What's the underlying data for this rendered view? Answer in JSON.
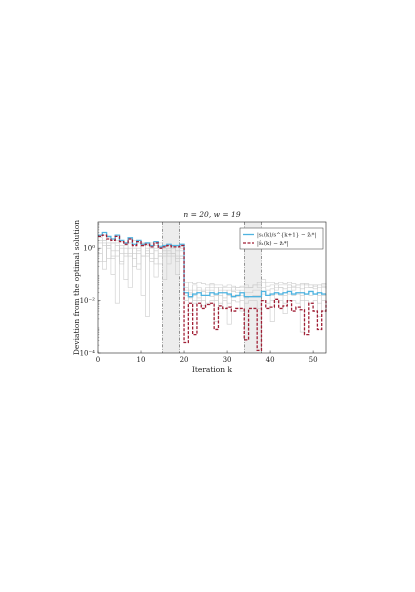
{
  "chart_data": {
    "type": "line",
    "title": "n = 20, w = 19",
    "xlabel": "Iteration k",
    "ylabel": "Deviation from the optimal solution",
    "xlim": [
      0,
      53
    ],
    "ylim_log10": [
      -4,
      1
    ],
    "y_scale": "log",
    "xticks": [
      0,
      10,
      20,
      30,
      40,
      50
    ],
    "xtick_labels": [
      "0",
      "10",
      "20",
      "30",
      "40",
      "50"
    ],
    "yticks_log10": [
      0,
      -2,
      -4
    ],
    "ytick_labels": [
      "10⁰",
      "10⁻²",
      "10⁻⁴"
    ],
    "grid": false,
    "legend_position": "top-right",
    "shaded_intervals": [
      [
        15,
        19
      ],
      [
        34,
        38
      ]
    ],
    "colors": {
      "series1": "#4fb3e0",
      "series2": "#a01f35",
      "background_lines": "#cccccc",
      "shaded": "#e6e6e6"
    },
    "series": [
      {
        "name": "|s₁(k)/s^{k+1} − z̄ₜ*|",
        "style": "solid",
        "x": [
          0,
          1,
          2,
          3,
          4,
          5,
          6,
          7,
          8,
          9,
          10,
          11,
          12,
          13,
          14,
          15,
          16,
          17,
          18,
          19,
          20,
          21,
          22,
          23,
          24,
          25,
          26,
          27,
          28,
          29,
          30,
          31,
          32,
          33,
          34,
          35,
          36,
          37,
          38,
          39,
          40,
          41,
          42,
          43,
          44,
          45,
          46,
          47,
          48,
          49,
          50,
          51,
          52,
          53
        ],
        "y_log10": [
          0.5,
          0.6,
          0.45,
          0.35,
          0.5,
          0.3,
          0.2,
          0.4,
          0.15,
          0.3,
          0.15,
          0.2,
          0.1,
          0.25,
          0.05,
          0.1,
          0.15,
          0.1,
          0.1,
          0.15,
          -1.7,
          -1.85,
          -1.75,
          -1.7,
          -1.8,
          -1.8,
          -1.7,
          -1.75,
          -1.7,
          -1.7,
          -1.75,
          -1.85,
          -1.8,
          -1.7,
          -1.85,
          -1.85,
          -1.85,
          -1.85,
          -1.65,
          -1.8,
          -1.75,
          -1.7,
          -1.75,
          -1.7,
          -1.65,
          -1.75,
          -1.7,
          -1.7,
          -1.75,
          -1.65,
          -1.75,
          -1.7,
          -1.75,
          -1.75
        ]
      },
      {
        "name": "|ŝ₁(k) − z̄ₜ*|",
        "style": "dashed",
        "x": [
          0,
          1,
          2,
          3,
          4,
          5,
          6,
          7,
          8,
          9,
          10,
          11,
          12,
          13,
          14,
          15,
          16,
          17,
          18,
          19,
          20,
          21,
          22,
          23,
          24,
          25,
          26,
          27,
          28,
          29,
          30,
          31,
          32,
          33,
          34,
          35,
          36,
          37,
          38,
          39,
          40,
          41,
          42,
          43,
          44,
          45,
          46,
          47,
          48,
          49,
          50,
          51,
          52,
          53
        ],
        "y_log10": [
          0.45,
          0.5,
          0.35,
          0.3,
          0.45,
          0.25,
          0.15,
          0.35,
          0.1,
          0.25,
          0.1,
          0.15,
          0.05,
          0.2,
          0.0,
          0.05,
          0.1,
          0.05,
          0.05,
          0.1,
          -3.6,
          -2.1,
          -3.3,
          -2.1,
          -2.3,
          -2.15,
          -2.1,
          -3.1,
          -2.2,
          -2.3,
          -2.25,
          -2.4,
          -2.3,
          -2.3,
          -3.5,
          -2.3,
          -2.3,
          -3.9,
          -2.0,
          -2.3,
          -2.25,
          -1.95,
          -2.3,
          -2.2,
          -2.0,
          -2.4,
          -2.25,
          -2.35,
          -3.3,
          -2.1,
          -2.4,
          -3.1,
          -2.4,
          -2.0
        ]
      }
    ],
    "background_traces_y_log10": [
      [
        0.2,
        0.3,
        0.1,
        -0.1,
        0.2,
        -0.2,
        0.1,
        -0.3,
        0.0,
        -0.1,
        0.2,
        -0.2,
        0.0,
        -0.4,
        0.1,
        -0.3,
        0.0,
        0.05,
        -0.1,
        0.0,
        -1.6,
        -1.7,
        -1.6,
        -1.7,
        -1.65,
        -1.7,
        -1.6,
        -1.75,
        -1.6,
        -1.7,
        -1.6,
        -1.65,
        -1.7,
        -1.6,
        -1.7,
        -1.7,
        -1.6,
        -1.6,
        -1.5,
        -1.6,
        -1.55,
        -1.6,
        -1.5,
        -1.55,
        -1.5,
        -1.6,
        -1.5,
        -1.55,
        -1.5,
        -1.5,
        -1.55,
        -1.5,
        -1.5,
        -1.55
      ],
      [
        0.0,
        -0.5,
        0.2,
        -1.0,
        0.1,
        -0.6,
        -0.2,
        -1.5,
        0.0,
        -0.8,
        -0.3,
        -2.6,
        0.05,
        -0.6,
        -0.3,
        -1.2,
        -0.1,
        -0.2,
        -0.4,
        -0.3,
        -1.3,
        -2.5,
        -1.4,
        -1.6,
        -2.2,
        -1.5,
        -1.4,
        -2.8,
        -1.5,
        -1.6,
        -2.9,
        -1.5,
        -1.6,
        -2.4,
        -1.5,
        -1.5,
        -1.4,
        -1.5,
        -1.3,
        -1.6,
        -2.8,
        -1.4,
        -1.5,
        -2.5,
        -1.4,
        -1.5,
        -1.4,
        -3.2,
        -1.4,
        -1.5,
        -1.4,
        -2.6,
        -1.4,
        -1.4
      ],
      [
        0.3,
        0.1,
        -0.4,
        0.2,
        -0.3,
        0.0,
        -1.2,
        0.2,
        -0.4,
        -0.2,
        -1.8,
        0.0,
        -0.4,
        -0.1,
        -0.6,
        0.0,
        -0.2,
        0.0,
        -0.3,
        -0.1,
        -1.5,
        -1.6,
        -2.0,
        -1.5,
        -1.6,
        -1.6,
        -1.5,
        -1.5,
        -2.3,
        -1.5,
        -1.5,
        -1.6,
        -1.5,
        -1.5,
        -1.4,
        -1.5,
        -1.4,
        -1.4,
        -1.3,
        -1.45,
        -1.4,
        -1.5,
        -1.4,
        -1.4,
        -1.4,
        -1.45,
        -1.4,
        -1.4,
        -1.35,
        -1.4,
        -1.4,
        -1.4,
        -1.35,
        -1.4
      ],
      [
        -0.5,
        0.2,
        0.0,
        -0.3,
        -2.1,
        0.1,
        -0.3,
        0.0,
        -0.2,
        -0.6,
        0.1,
        -0.3,
        -0.2,
        -1.1,
        -0.2,
        -0.1,
        -0.3,
        -0.2,
        -0.5,
        -0.3,
        -1.8,
        -1.75,
        -1.8,
        -1.9,
        -1.8,
        -1.8,
        -1.85,
        -1.8,
        -1.8,
        -1.9,
        -1.8,
        -1.8,
        -1.85,
        -1.8,
        -1.9,
        -1.85,
        -1.8,
        -1.8,
        -1.75,
        -1.8,
        -1.8,
        -1.75,
        -1.8,
        -1.8,
        -1.75,
        -1.8,
        -1.75,
        -1.8,
        -1.75,
        -1.8,
        -1.75,
        -1.8,
        -1.8,
        -1.75
      ],
      [
        0.4,
        0.3,
        0.4,
        0.2,
        0.3,
        0.3,
        0.2,
        0.2,
        0.3,
        0.2,
        0.2,
        0.1,
        0.2,
        0.1,
        0.2,
        0.1,
        0.1,
        0.1,
        0.1,
        0.0,
        -1.3,
        -1.3,
        -1.35,
        -1.3,
        -1.35,
        -1.4,
        -1.35,
        -1.4,
        -1.4,
        -1.45,
        -1.4,
        -1.45,
        -1.5,
        -1.45,
        -1.5,
        -1.5,
        -1.4,
        -1.3,
        -1.2,
        -1.3,
        -1.3,
        -1.35,
        -1.3,
        -1.35,
        -1.3,
        -1.35,
        -1.4,
        -1.35,
        -1.4,
        -1.4,
        -1.45,
        -1.4,
        -1.45,
        -1.5
      ],
      [
        -0.2,
        -0.8,
        0.1,
        -0.4,
        -0.1,
        -0.5,
        0.0,
        -0.2,
        -0.7,
        0.0,
        -0.3,
        -0.1,
        -0.5,
        0.0,
        -0.3,
        -0.2,
        -0.6,
        -0.3,
        -1.0,
        -0.4,
        -2.0,
        -1.9,
        -2.1,
        -2.0,
        -2.0,
        -2.1,
        -2.0,
        -2.0,
        -2.1,
        -2.0,
        -2.1,
        -2.0,
        -2.05,
        -2.0,
        -2.1,
        -2.0,
        -2.0,
        -2.3,
        -2.0,
        -2.1,
        -2.0,
        -2.05,
        -2.0,
        -2.1,
        -2.0,
        -2.0,
        -2.1,
        -2.0,
        -2.0,
        -2.1,
        -2.0,
        -2.1,
        -2.0,
        -2.0
      ]
    ]
  }
}
